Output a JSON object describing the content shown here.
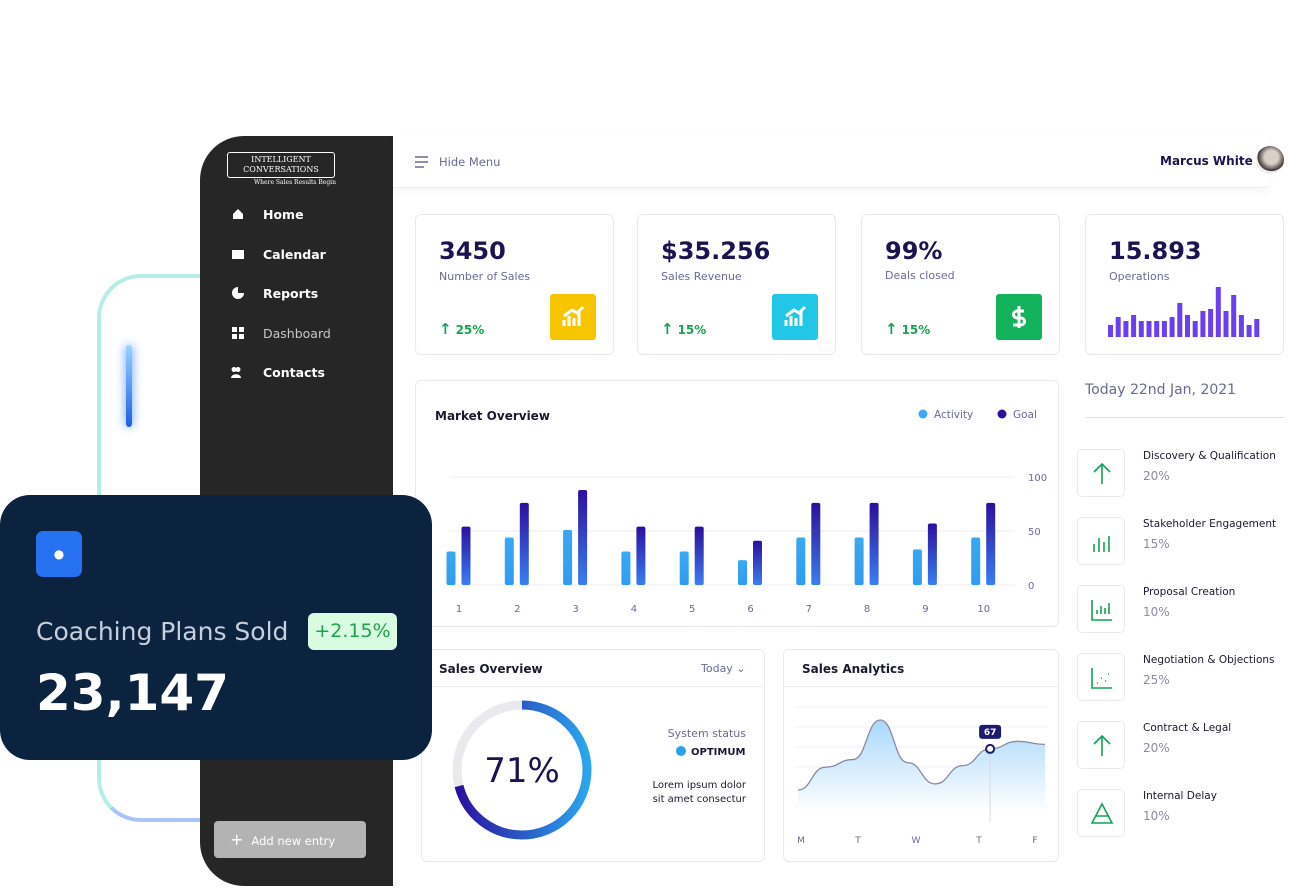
{
  "logo": {
    "line1": "INTELLIGENT",
    "line2": "CONVERSATIONS",
    "tagline": "Where Sales Results Begin"
  },
  "nav": [
    "Home",
    "Calendar",
    "Reports",
    "Dashboard",
    "Contacts"
  ],
  "add_entry": "Add new entry",
  "header": {
    "menu": "Hide Menu",
    "user": "Marcus White"
  },
  "promo": {
    "title": "Coaching Plans Sold",
    "change": "+2.15%",
    "value": "23,147"
  },
  "stats": [
    {
      "value": "3450",
      "label": "Number of Sales",
      "change": "25%",
      "color": "#f7c600"
    },
    {
      "value": "$35.256",
      "label": "Sales Revenue",
      "change": "15%",
      "color": "#22c7e8"
    },
    {
      "value": "99%",
      "label": "Deals closed",
      "change": "15%",
      "color": "#12b35a"
    },
    {
      "value": "15.893",
      "label": "Operations"
    }
  ],
  "operations_bars": [
    12,
    20,
    16,
    22,
    16,
    16,
    16,
    16,
    20,
    34,
    22,
    16,
    26,
    28,
    50,
    26,
    42,
    22,
    12,
    18
  ],
  "market": {
    "type": "bar",
    "title": "Market Overview",
    "categories": [
      "1",
      "2",
      "3",
      "4",
      "5",
      "6",
      "7",
      "8",
      "9",
      "10"
    ],
    "series": [
      {
        "name": "Activity",
        "color": "#3aa8f2",
        "values": [
          31,
          44,
          51,
          31,
          31,
          23,
          44,
          44,
          33,
          44
        ]
      },
      {
        "name": "Goal",
        "color": "#2d0f9e",
        "values": [
          54,
          76,
          88,
          54,
          54,
          41,
          76,
          76,
          57,
          76
        ]
      }
    ],
    "ylim": [
      0,
      100
    ],
    "yticks": [
      0,
      50,
      100
    ]
  },
  "date": "Today 22nd Jan, 2021",
  "stages": [
    {
      "name": "Discovery & Qualification",
      "value": "20%"
    },
    {
      "name": "Stakeholder Engagement",
      "value": "15%"
    },
    {
      "name": "Proposal Creation",
      "value": "10%"
    },
    {
      "name": "Negotiation & Objections",
      "value": "25%"
    },
    {
      "name": "Contract & Legal",
      "value": "20%"
    },
    {
      "name": "Internal Delay",
      "value": "10%"
    }
  ],
  "sales_overview": {
    "title": "Sales Overview",
    "period": "Today",
    "progress": {
      "value": 71,
      "label": "71%"
    },
    "status_label": "System status",
    "status": "OPTIMUM",
    "note": "Lorem ipsum dolor sit amet consectur"
  },
  "sales_analytics": {
    "title": "Sales Analytics",
    "days": [
      "M",
      "T",
      "W",
      "T",
      "F"
    ],
    "marker": "67",
    "curve": [
      40,
      55,
      60,
      86,
      58,
      44,
      56,
      67,
      72,
      70
    ]
  }
}
